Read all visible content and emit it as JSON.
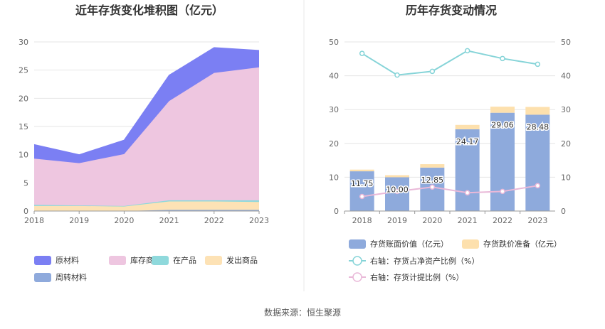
{
  "chart_data": [
    {
      "type": "area",
      "title": "近年存货变化堆积图（亿元）",
      "x": [
        "2018",
        "2019",
        "2020",
        "2021",
        "2022",
        "2023"
      ],
      "ylim": [
        0,
        30
      ],
      "yticks": [
        "0",
        "5",
        "10",
        "15",
        "20",
        "25",
        "30"
      ],
      "grid": true,
      "stacked": true,
      "series": [
        {
          "name": "原材料",
          "color": "#7b7ff3",
          "values": [
            2.5,
            1.5,
            2.5,
            4.6,
            4.5,
            3.0
          ]
        },
        {
          "name": "库存商品",
          "color": "#eec6e0",
          "values": [
            8.2,
            7.5,
            9.2,
            17.6,
            22.6,
            23.6
          ]
        },
        {
          "name": "在产品",
          "color": "#8fd9dc",
          "values": [
            0.2,
            0.1,
            0.1,
            0.2,
            0.2,
            0.3
          ]
        },
        {
          "name": "发出商品",
          "color": "#fde2b5",
          "values": [
            0.9,
            0.9,
            0.8,
            1.5,
            1.5,
            1.4
          ]
        },
        {
          "name": "周转材料",
          "color": "#8faadc",
          "values": [
            0.0,
            0.0,
            0.0,
            0.2,
            0.2,
            0.2
          ]
        }
      ],
      "legend_position": "bottom"
    },
    {
      "type": "bar",
      "title": "历年存货变动情况",
      "x": [
        "2018",
        "2019",
        "2020",
        "2021",
        "2022",
        "2023"
      ],
      "ylim": [
        0,
        50
      ],
      "yticks": [
        "0",
        "10",
        "20",
        "30",
        "40",
        "50"
      ],
      "y2lim": [
        0,
        50
      ],
      "y2ticks": [
        "0",
        "10",
        "20",
        "30",
        "40",
        "50"
      ],
      "grid": true,
      "legend_position": "bottom",
      "series": [
        {
          "name": "存货账面价值（亿元）",
          "kind": "bar",
          "axis": "left",
          "color": "#8eaadc",
          "values": [
            11.75,
            10.0,
            12.85,
            24.17,
            29.06,
            28.48
          ],
          "labels": [
            "11.75",
            "10.00",
            "12.85",
            "24.17",
            "29.06",
            "28.48"
          ]
        },
        {
          "name": "存货跌价准备（亿元）",
          "kind": "bar-stacked",
          "axis": "left",
          "color": "#fde0ad",
          "values": [
            0.5,
            0.6,
            1.0,
            1.3,
            1.8,
            2.3
          ]
        },
        {
          "name": "右轴：存货占净资产比例（%）",
          "kind": "line",
          "axis": "right",
          "color": "#86d4d8",
          "values": [
            46.6,
            40.2,
            41.3,
            47.4,
            45.1,
            43.4
          ]
        },
        {
          "name": "右轴：存货计提比例（%）",
          "kind": "line",
          "axis": "right",
          "color": "#e9b8d8",
          "values": [
            4.3,
            5.8,
            7.1,
            5.4,
            5.8,
            7.5
          ]
        }
      ]
    }
  ],
  "source": "数据来源：恒生聚源"
}
